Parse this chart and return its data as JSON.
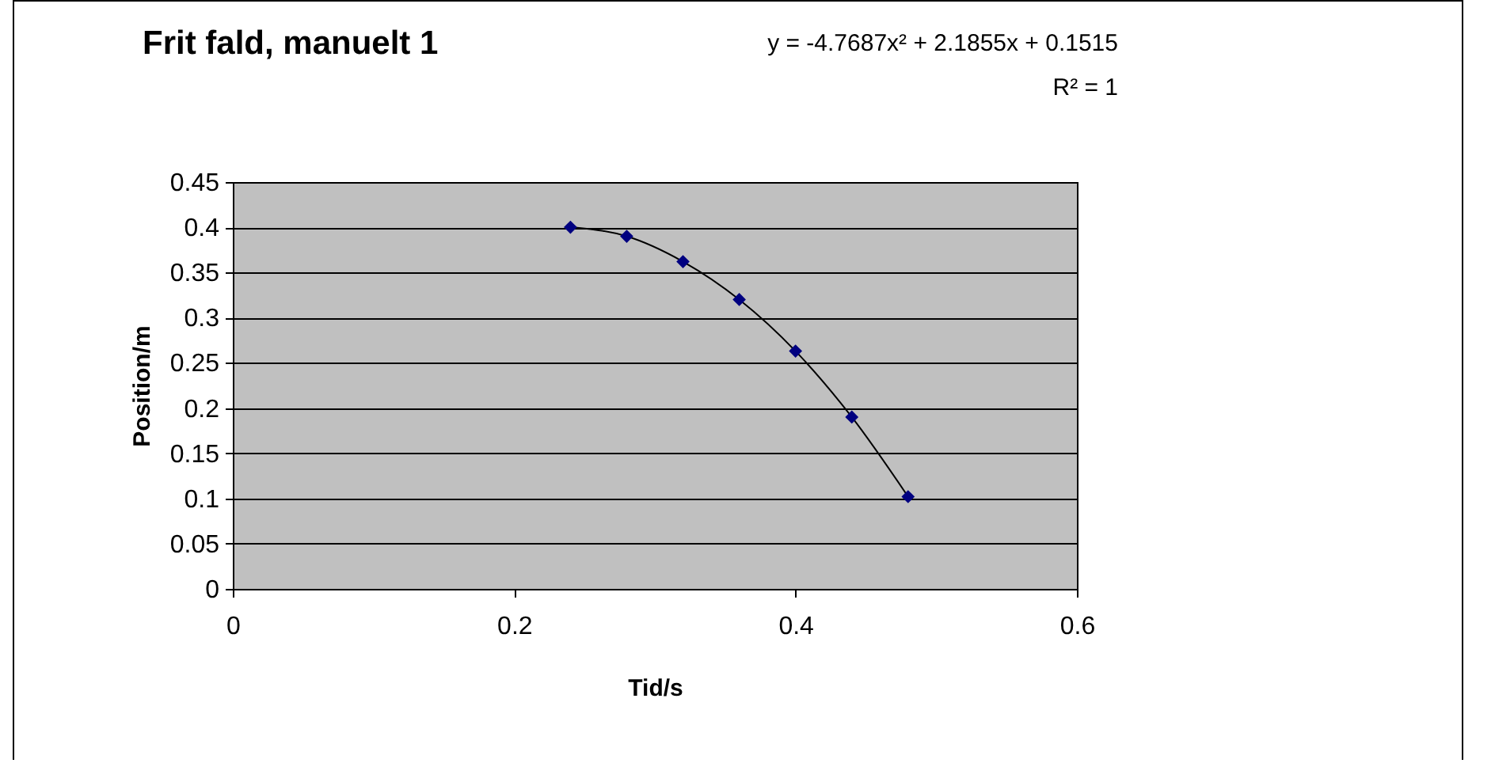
{
  "chart_data": {
    "type": "scatter",
    "title": "Frit fald, manuelt 1",
    "xlabel": "Tid/s",
    "ylabel": "Position/m",
    "annotations": [
      "y = -4.7687x² + 2.1855x + 0.1515",
      "R² = 1"
    ],
    "x": [
      0.24,
      0.28,
      0.32,
      0.36,
      0.4,
      0.44,
      0.48
    ],
    "series": [
      {
        "color": "#000080",
        "marker": "diamond",
        "values": [
          0.4,
          0.39,
          0.362,
          0.32,
          0.263,
          0.19,
          0.102
        ]
      },
      {
        "type": "line",
        "color": "#000000",
        "marker": "none",
        "line_style": "solid",
        "x": [
          0.24,
          0.28,
          0.32,
          0.36,
          0.4,
          0.44,
          0.48
        ],
        "values": [
          0.4,
          0.39,
          0.362,
          0.32,
          0.263,
          0.19,
          0.102
        ]
      }
    ],
    "xlim": [
      0,
      0.6
    ],
    "xticks": [
      0,
      0.2,
      0.4,
      0.6
    ],
    "ylim": [
      0,
      0.45
    ],
    "yticks": [
      0,
      0.05,
      0.1,
      0.15,
      0.2,
      0.25,
      0.3,
      0.35,
      0.4,
      0.45
    ],
    "grid": "y"
  }
}
